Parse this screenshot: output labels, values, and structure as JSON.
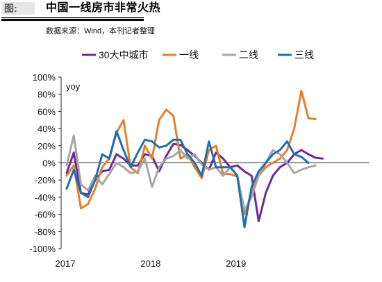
{
  "figure": {
    "tag": "图:",
    "title": "中国一线房市非常火热",
    "source": "数据来源：Wind，本刊记者整理"
  },
  "chart_data": {
    "type": "line",
    "ylabel": "yoy",
    "ylim": [
      -100,
      100
    ],
    "yticks": [
      -100,
      -80,
      -60,
      -40,
      -20,
      0,
      20,
      40,
      60,
      80,
      100
    ],
    "ytick_labels": [
      "-100%",
      "-80%",
      "-60%",
      "-40%",
      "-20%",
      "0%",
      "20%",
      "40%",
      "60%",
      "80%",
      "100%"
    ],
    "x_ticks": [
      "2017",
      "2018",
      "2019"
    ],
    "x": [
      "2017-01",
      "2017-02",
      "2017-03",
      "2017-04",
      "2017-05",
      "2017-06",
      "2017-07",
      "2017-08",
      "2017-09",
      "2017-10",
      "2017-11",
      "2017-12",
      "2018-01",
      "2018-02",
      "2018-03",
      "2018-04",
      "2018-05",
      "2018-06",
      "2018-07",
      "2018-08",
      "2018-09",
      "2018-10",
      "2018-11",
      "2018-12",
      "2019-01",
      "2019-02",
      "2019-03",
      "2019-04",
      "2019-05",
      "2019-06",
      "2019-07",
      "2019-08",
      "2019-09",
      "2019-10",
      "2019-11",
      "2019-12",
      "2020-01",
      "2020-02",
      "2020-03",
      "2020-04",
      "2020-05",
      "2020-06",
      "2020-07"
    ],
    "legend_position": "top",
    "grid": false,
    "series": [
      {
        "name": "30大中城市",
        "color": "#6a2a9a",
        "values": [
          -12,
          12,
          -35,
          -37,
          -20,
          -10,
          -8,
          10,
          5,
          -3,
          -3,
          10,
          8,
          -10,
          8,
          22,
          21,
          15,
          8,
          0,
          -8,
          12,
          5,
          -5,
          -3,
          -10,
          -15,
          -68,
          -35,
          -15,
          -5,
          0,
          10,
          15,
          10,
          6,
          5,
          null,
          null,
          null,
          null,
          null,
          null
        ]
      },
      {
        "name": "一线",
        "color": "#e87e2a",
        "values": [
          -15,
          -3,
          -53,
          -48,
          -30,
          -5,
          5,
          35,
          50,
          -5,
          -12,
          20,
          5,
          50,
          62,
          55,
          5,
          10,
          -5,
          -18,
          15,
          20,
          -13,
          -13,
          -16,
          -60,
          -35,
          -15,
          -5,
          0,
          5,
          15,
          40,
          84,
          52,
          51,
          null,
          null,
          null,
          null,
          null,
          null,
          null
        ]
      },
      {
        "name": "二线",
        "color": "#a6a6a6",
        "values": [
          -3,
          32,
          -25,
          -32,
          -15,
          -25,
          -13,
          0,
          -5,
          -12,
          -10,
          5,
          -28,
          -5,
          5,
          8,
          15,
          5,
          10,
          -2,
          -8,
          -5,
          -15,
          -5,
          -15,
          -55,
          -40,
          -15,
          0,
          15,
          10,
          0,
          -12,
          -8,
          -5,
          -3,
          null,
          null,
          null,
          null,
          null,
          null,
          null
        ]
      },
      {
        "name": "三线",
        "color": "#1f6fb2",
        "values": [
          -30,
          -8,
          -35,
          -40,
          -20,
          10,
          5,
          37,
          15,
          -5,
          12,
          27,
          25,
          18,
          20,
          27,
          27,
          10,
          0,
          -15,
          25,
          -5,
          -5,
          -5,
          -15,
          -75,
          -28,
          -10,
          0,
          10,
          15,
          25,
          10,
          7,
          0,
          null,
          null,
          null,
          null,
          null,
          null,
          null,
          null
        ]
      }
    ]
  }
}
